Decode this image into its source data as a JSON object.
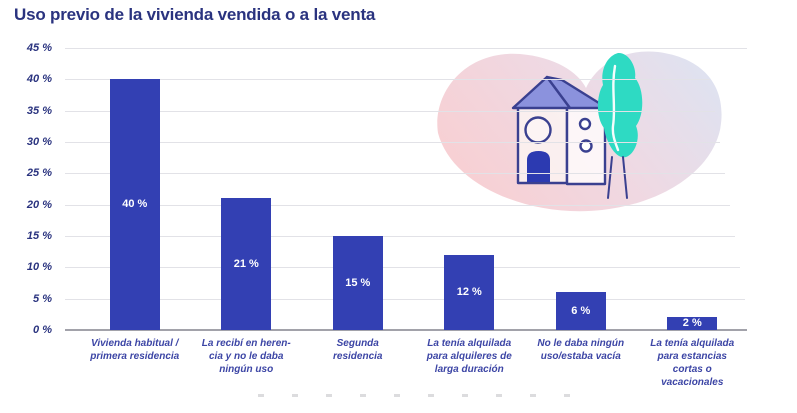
{
  "page": {
    "title": "Uso previo de la vivienda vendida o a la venta"
  },
  "chart_data": {
    "type": "bar",
    "title": "Uso previo de la vivienda vendida o a la venta",
    "categories": [
      "Vivienda habitual /\nprimera residencia",
      "La recibí en heren-\ncia y no le daba\nningún uso",
      "Segunda\nresidencia",
      "La tenía alquilada\npara alquileres de\nlarga duración",
      "No le daba ningún\nuso/estaba vacía",
      "La tenía alquilada\npara estancias\ncortas o\nvacacionales"
    ],
    "values": [
      40,
      21,
      15,
      12,
      6,
      2
    ],
    "value_labels": [
      "40 %",
      "21 %",
      "15 %",
      "12 %",
      "6 %",
      "2 %"
    ],
    "y_ticks": [
      {
        "value": 45,
        "label": "45 %"
      },
      {
        "value": 40,
        "label": "40 %"
      },
      {
        "value": 35,
        "label": "35 %"
      },
      {
        "value": 30,
        "label": "30 %"
      },
      {
        "value": 25,
        "label": "25 %"
      },
      {
        "value": 20,
        "label": "20 %"
      },
      {
        "value": 15,
        "label": "15 %"
      },
      {
        "value": 10,
        "label": "10 %"
      },
      {
        "value": 5,
        "label": "5 %"
      },
      {
        "value": 0,
        "label": "0 %"
      }
    ],
    "ylim": [
      0,
      45
    ],
    "grid": true,
    "legend_position": "none",
    "xlabel": "",
    "ylabel": "",
    "colors": {
      "bar": "#3340B3",
      "title": "#2A337F",
      "tick_label": "#2A337F",
      "category_label": "#3C45A5",
      "gridline": "#E2E2E7",
      "baseline": "#A2A2AA",
      "value_label": "#FFFFFF"
    }
  },
  "illustration": {
    "name": "house-with-tree",
    "blob_pink": "#F8CFD2",
    "blob_lavender": "#DFE2F0",
    "roof": "#8B92DD",
    "door": "#2C3AB1",
    "tree": "#2EDAC3",
    "outline": "#3A4090",
    "body": "#FBF5F1"
  }
}
